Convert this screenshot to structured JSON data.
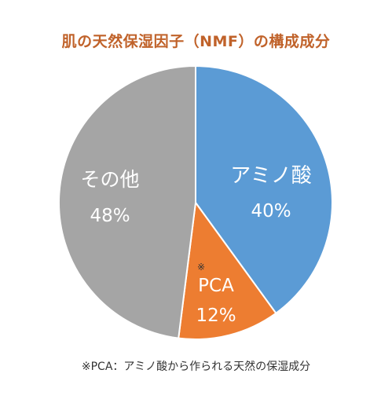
{
  "chart_data": {
    "type": "pie",
    "title": "肌の天然保湿因子（NMF）の構成成分",
    "slices": [
      {
        "label": "アミノ酸",
        "value": 40,
        "value_label": "40%",
        "color": "#5b9bd5"
      },
      {
        "label": "PCA",
        "value": 12,
        "value_label": "12%",
        "color": "#ed7d31",
        "marker": "※"
      },
      {
        "label": "その他",
        "value": 48,
        "value_label": "48%",
        "color": "#a5a5a5"
      }
    ],
    "start": "12 o'clock",
    "direction": "clockwise",
    "legend": "none",
    "footnote": "※PCA：アミノ酸から作られる天然の保湿成分"
  }
}
